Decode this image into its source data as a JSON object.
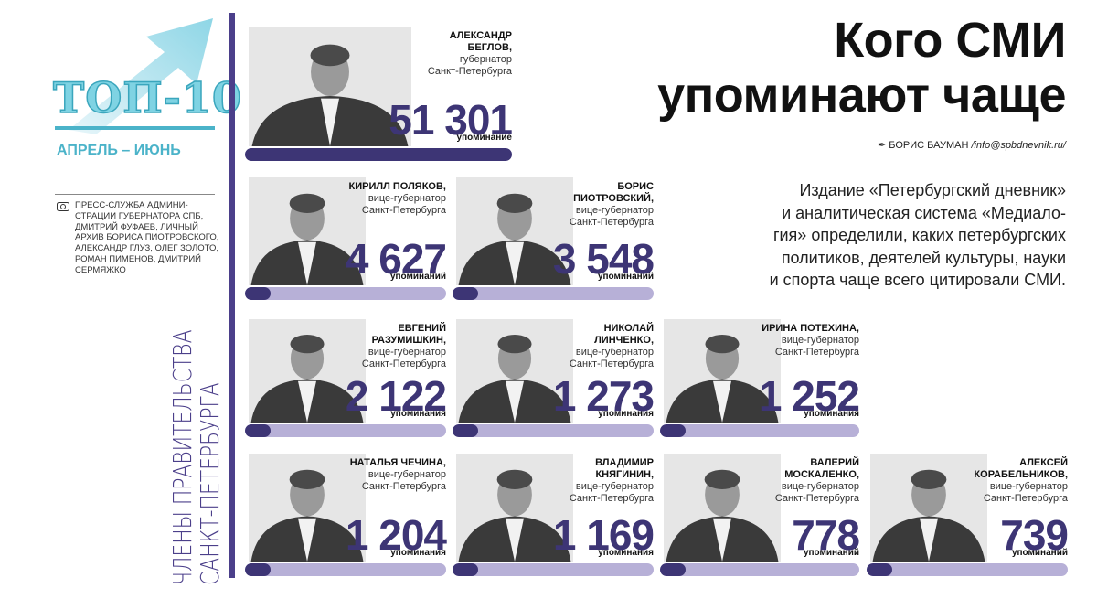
{
  "header": {
    "badge": "ТОП-10",
    "period": "АПРЕЛЬ – ИЮНЬ",
    "title_lines": [
      "Кого СМИ",
      "упоминают чаще"
    ],
    "author": "БОРИС БАУМАН",
    "email": "/info@spbdnevnik.ru/",
    "intro_lines": [
      "Издание «Петербургский дневник»",
      "и аналитическая система «Медиало-",
      "гия» определили, каких петербургских",
      "политиков, деятелей культуры, науки",
      "и спорта чаще всего цитировали СМИ."
    ],
    "credits_lines": [
      "ПРЕСС-СЛУЖБА АДМИНИ-",
      "СТРАЦИИ ГУБЕРНАТОРА СПБ,",
      "ДМИТРИЙ ФУФАЕВ, ЛИЧНЫЙ",
      "АРХИВ БОРИСА ПИОТРОВСКОГО,",
      "АЛЕКСАНДР ГЛУЗ, ОЛЕГ ЗОЛОТО,",
      "РОМАН ПИМЕНОВ, ДМИТРИЙ",
      "СЕРМЯЖКО"
    ],
    "side_label_lines": [
      "ЧЛЕНЫ ПРАВИТЕЛЬСТВА",
      "САНКТ-ПЕТЕРБУРГА"
    ]
  },
  "people": [
    {
      "name": "АЛЕКСАНДР БЕГЛОВ,",
      "role": "губернатор",
      "city": "Санкт-Петербурга",
      "mentions": "51 301",
      "unit": "упоминание"
    },
    {
      "name": "КИРИЛЛ ПОЛЯКОВ,",
      "role": "вице-губернатор",
      "city": "Санкт-Петербурга",
      "mentions": "4 627",
      "unit": "упоминаний"
    },
    {
      "name": "БОРИС ПИОТРОВСКИЙ,",
      "role": "вице-губернатор",
      "city": "Санкт-Петербурга",
      "mentions": "3 548",
      "unit": "упоминаний"
    },
    {
      "name": "ЕВГЕНИЙ РАЗУМИШКИН,",
      "role": "вице-губернатор",
      "city": "Санкт-Петербурга",
      "mentions": "2 122",
      "unit": "упоминания"
    },
    {
      "name": "НИКОЛАЙ ЛИНЧЕНКО,",
      "role": "вице-губернатор",
      "city": "Санкт-Петербурга",
      "mentions": "1 273",
      "unit": "упоминания"
    },
    {
      "name": "ИРИНА ПОТЕХИНА,",
      "role": "вице-губернатор",
      "city": "Санкт-Петербурга",
      "mentions": "1 252",
      "unit": "упоминания"
    },
    {
      "name": "НАТАЛЬЯ ЧЕЧИНА,",
      "role": "вице-губернатор",
      "city": "Санкт-Петербурга",
      "mentions": "1 204",
      "unit": "упоминания"
    },
    {
      "name": "ВЛАДИМИР КНЯГИНИН,",
      "role": "вице-губернатор",
      "city": "Санкт-Петербурга",
      "mentions": "1 169",
      "unit": "упоминания"
    },
    {
      "name": "ВАЛЕРИЙ МОСКАЛЕНКО,",
      "role": "вице-губернатор",
      "city": "Санкт-Петербурга",
      "mentions": "778",
      "unit": "упоминаний"
    },
    {
      "name": "АЛЕКСЕЙ КОРАБЕЛЬНИКОВ,",
      "role": "вице-губернатор",
      "city": "Санкт-Петербурга",
      "mentions": "739",
      "unit": "упоминаний"
    }
  ]
}
